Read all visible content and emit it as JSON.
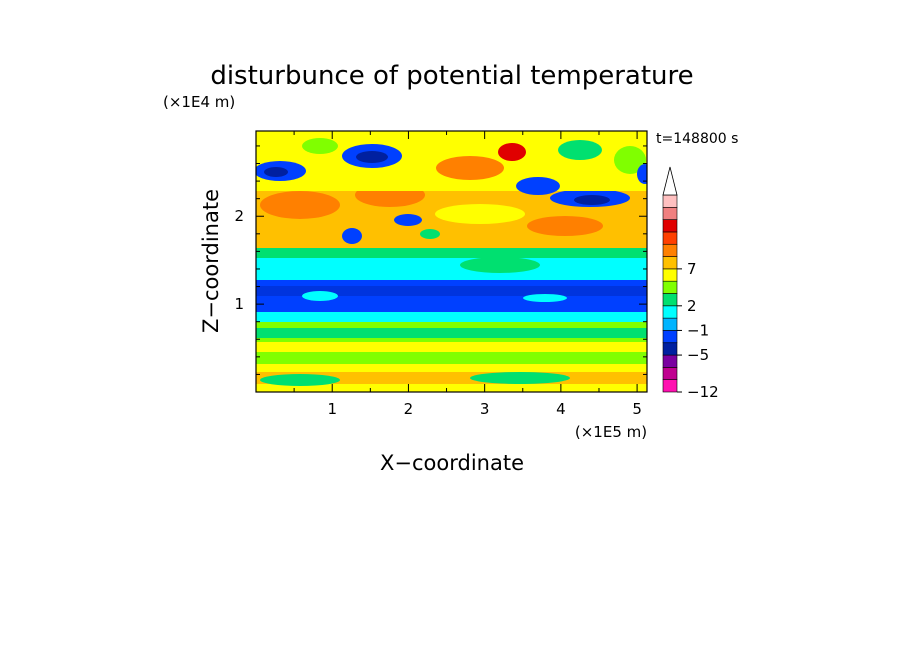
{
  "chart_data": {
    "type": "heatmap",
    "title": "disturbunce of potential temperature",
    "xlabel": "X−coordinate",
    "ylabel": "Z−coordinate",
    "x_unit": "(×1E5 m)",
    "y_unit": "(×1E4 m)",
    "time_label": "t=148800 s",
    "xlim": [
      0,
      5.13
    ],
    "ylim": [
      0,
      2.97
    ],
    "x_ticks": [
      1,
      2,
      3,
      4,
      5
    ],
    "x_tick_labels": [
      "1",
      "2",
      "3",
      "4",
      "5"
    ],
    "y_ticks": [
      1,
      2
    ],
    "y_tick_labels": [
      "1",
      "2"
    ],
    "colorbar": {
      "labels": [
        {
          "value": 7,
          "text": "7"
        },
        {
          "value": 2,
          "text": "2"
        },
        {
          "value": -1,
          "text": "−1"
        },
        {
          "value": -5,
          "text": "−5"
        },
        {
          "value": -12,
          "text": "−12"
        }
      ],
      "colors": [
        "#ff10b0",
        "#c00090",
        "#7a00a0",
        "#0020a0",
        "#0040ff",
        "#00b4ff",
        "#00ffff",
        "#00e070",
        "#80ff00",
        "#ffff00",
        "#ffc000",
        "#ff8000",
        "#ff4000",
        "#e00000",
        "#f08080",
        "#ffc0c0"
      ],
      "extends_max": true
    },
    "field_bands": [
      {
        "z_range": [
          0.0,
          0.3
        ],
        "dominant": "yellow-green mix"
      },
      {
        "z_range": [
          0.3,
          0.7
        ],
        "dominant": "yellow-orange with green"
      },
      {
        "z_range": [
          0.7,
          0.9
        ],
        "dominant": "cyan / light blue"
      },
      {
        "z_range": [
          0.9,
          1.3
        ],
        "dominant": "blue (negative)"
      },
      {
        "z_range": [
          1.3,
          1.7
        ],
        "dominant": "cyan / green"
      },
      {
        "z_range": [
          1.7,
          2.4
        ],
        "dominant": "orange / yellow with blue cells"
      },
      {
        "z_range": [
          2.4,
          2.97
        ],
        "dominant": "mixed red / blue / yellow"
      }
    ]
  }
}
